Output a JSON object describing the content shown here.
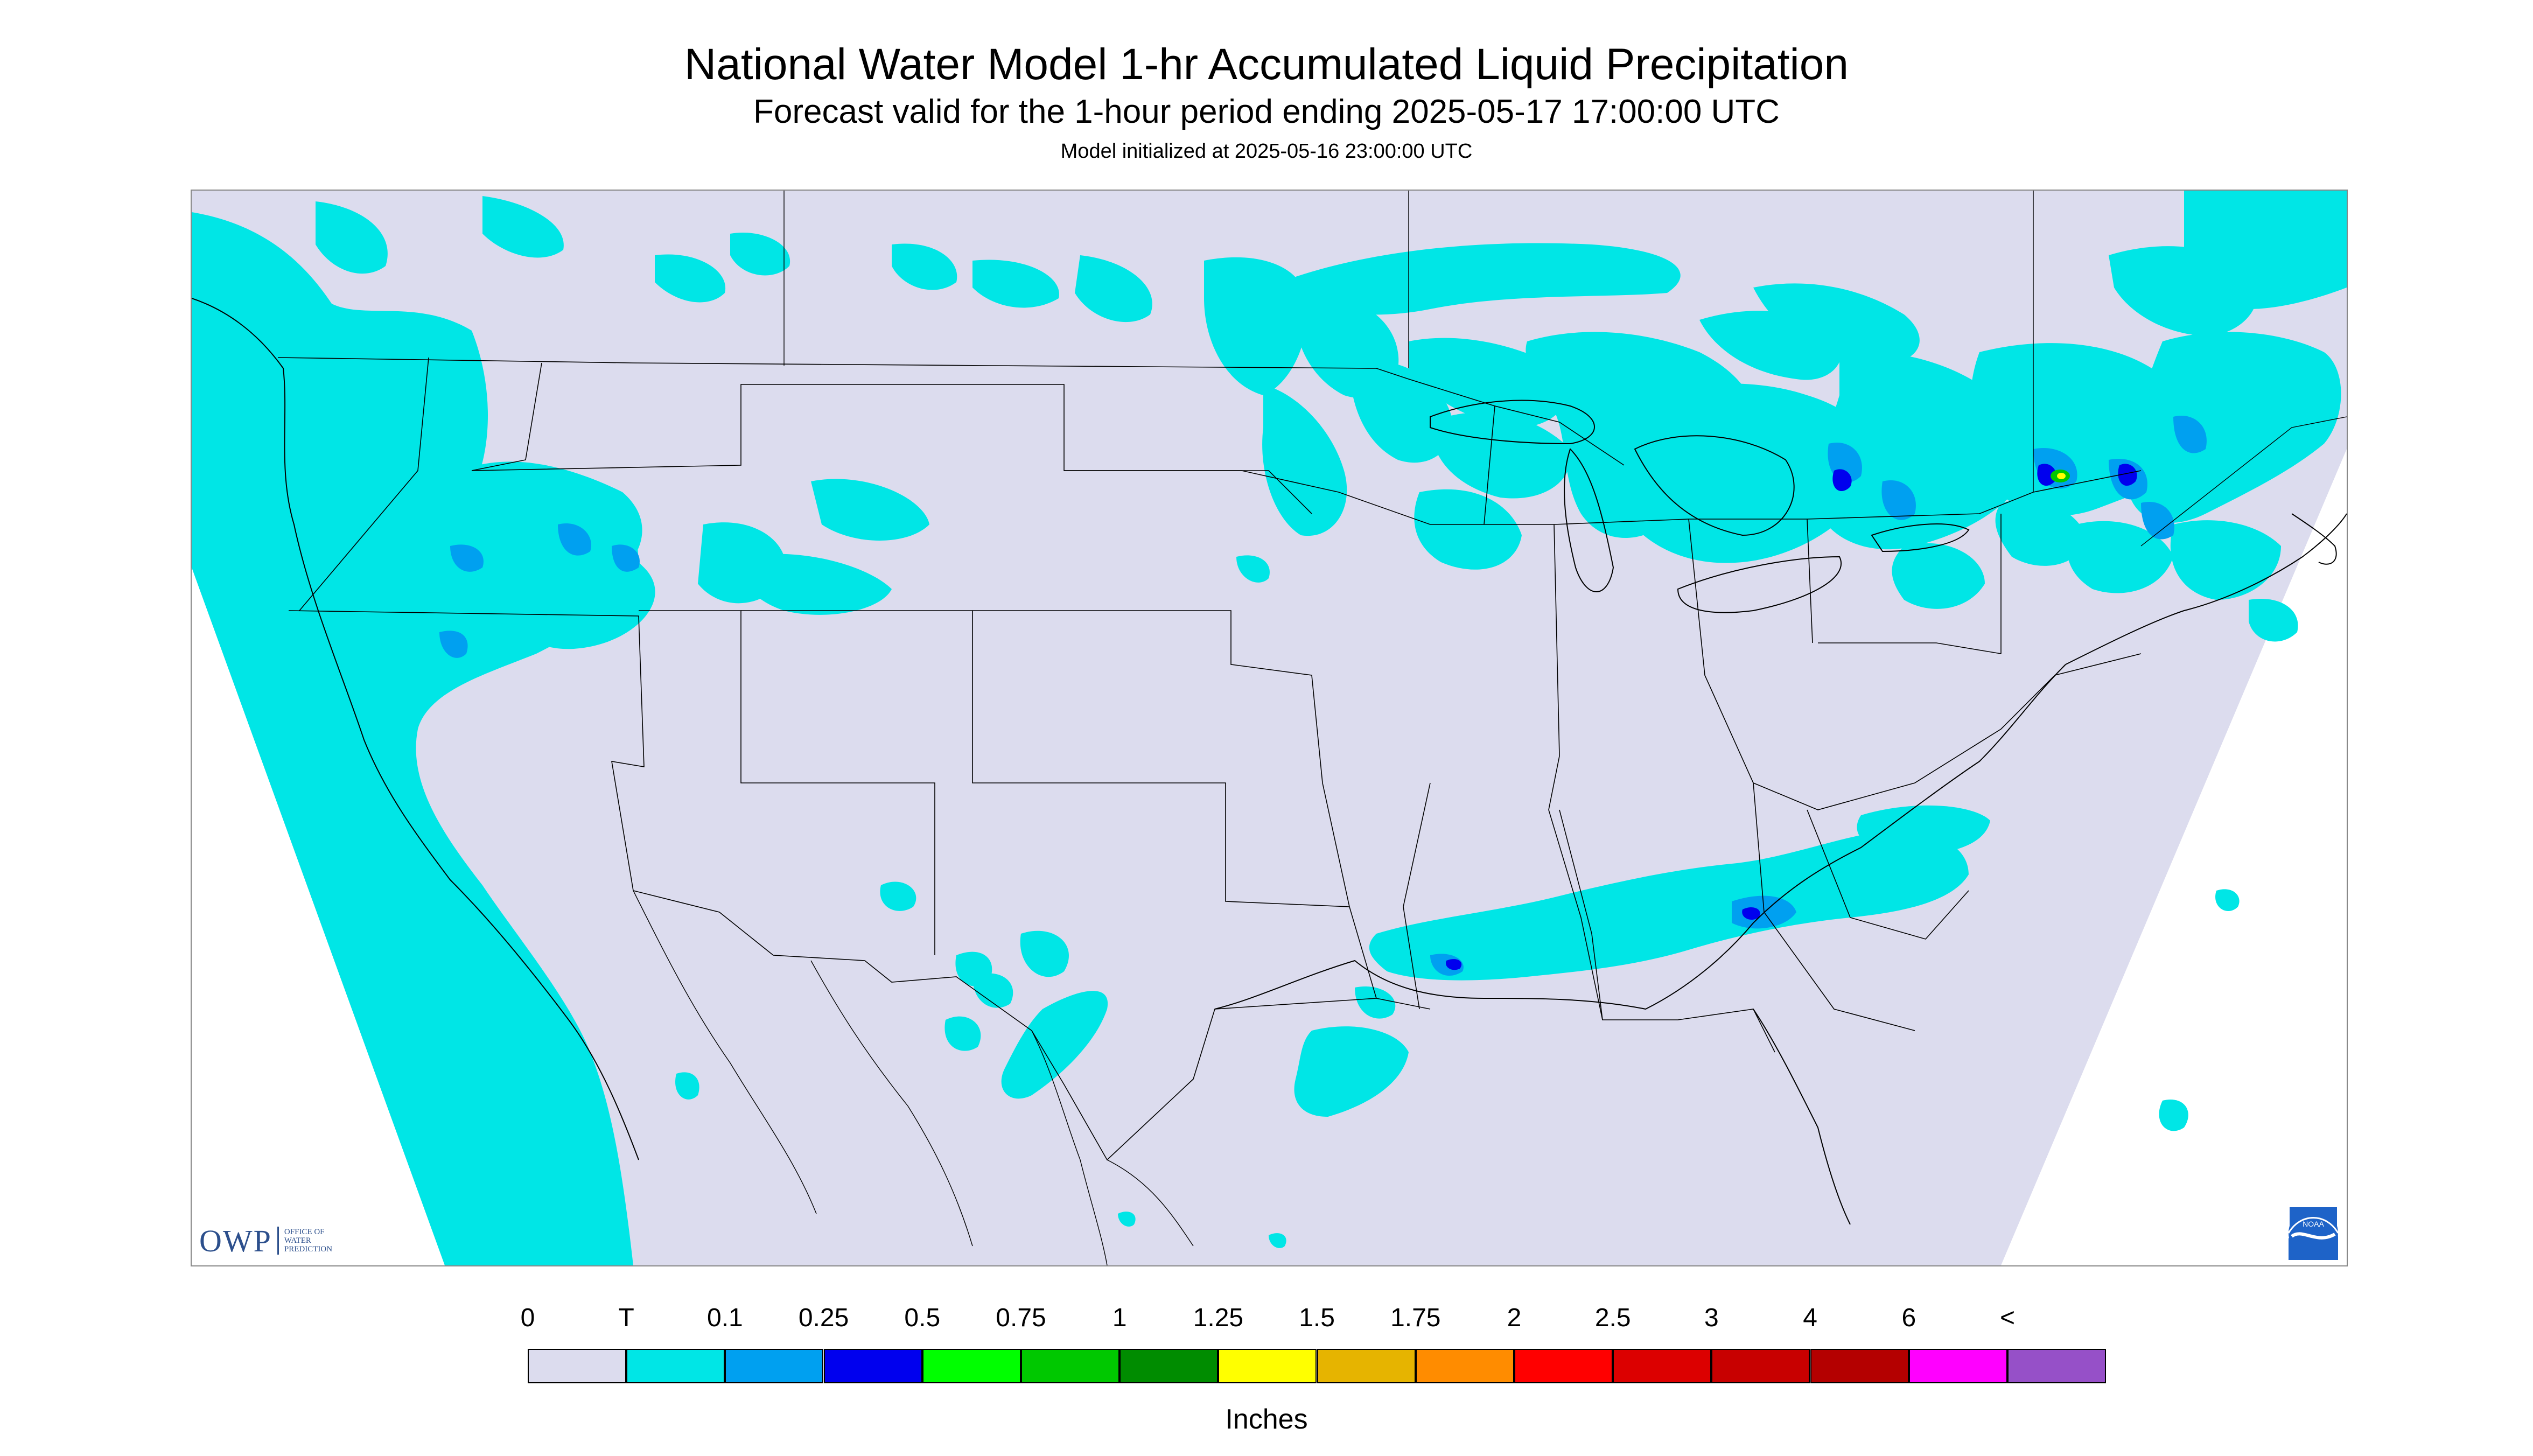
{
  "title": "National Water Model 1-hr Accumulated Liquid Precipitation",
  "subtitle": "Forecast valid for the 1-hour period ending 2025-05-17 17:00:00 UTC",
  "init_line": "Model initialized at 2025-05-16 23:00:00 UTC",
  "owp_logo": {
    "letters": "OWP",
    "words": [
      "OFFICE OF",
      "WATER",
      "PREDICTION"
    ]
  },
  "noaa_logo": {
    "icon": "noaa-logo-icon",
    "text": "NOAA"
  },
  "legend": {
    "units": "Inches",
    "labels": [
      "0",
      "T",
      "0.1",
      "0.25",
      "0.5",
      "0.75",
      "1",
      "1.25",
      "1.5",
      "1.75",
      "2",
      "2.5",
      "3",
      "4",
      "6",
      "<"
    ],
    "colors": [
      "#dcdcee",
      "#00e6e6",
      "#00a0f0",
      "#0000ee",
      "#00ff00",
      "#00c800",
      "#008c00",
      "#ffff00",
      "#e6b400",
      "#ff8c00",
      "#ff0000",
      "#dc0000",
      "#c80000",
      "#b40000",
      "#ff00ff",
      "#9650c8"
    ]
  },
  "map_colors": {
    "domain": "#dcdcee",
    "trace": "#00e6e6",
    "light": "#00a0f0",
    "moderate": "#0000ee",
    "heavy_green": "#00c800",
    "heavy_yellow": "#ffff00",
    "borders": "#000000"
  }
}
